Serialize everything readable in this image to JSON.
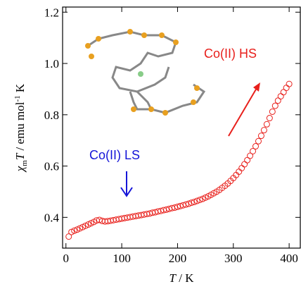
{
  "chart_data": {
    "type": "scatter",
    "x_label": [
      "T",
      " / K"
    ],
    "y_label": [
      "χ",
      "m",
      "T",
      " / emu mol",
      "-1",
      " K"
    ],
    "xlim": [
      -6,
      420
    ],
    "ylim": [
      0.28,
      1.22
    ],
    "xticks": [
      0,
      100,
      200,
      300,
      400
    ],
    "yticks": [
      0.4,
      0.6,
      0.8,
      {
        "value": 1,
        "label": "1.0"
      },
      1.2
    ],
    "annotations": [
      {
        "text": "Co(II) HS",
        "color": "#e8201c"
      },
      {
        "text": "Co(II) LS",
        "color": "#1515d8"
      }
    ],
    "series": [
      {
        "color": "#e8201c",
        "x": [
          5,
          10,
          15,
          20,
          25,
          30,
          35,
          40,
          45,
          50,
          55,
          60,
          65,
          70,
          75,
          80,
          85,
          90,
          95,
          100,
          105,
          110,
          115,
          120,
          125,
          130,
          135,
          140,
          145,
          150,
          155,
          160,
          165,
          170,
          175,
          180,
          185,
          190,
          195,
          200,
          205,
          210,
          215,
          220,
          225,
          230,
          235,
          240,
          245,
          250,
          255,
          260,
          265,
          270,
          275,
          280,
          285,
          290,
          295,
          300,
          305,
          310,
          315,
          320,
          325,
          330,
          335,
          340,
          345,
          350,
          355,
          360,
          365,
          370,
          375,
          380,
          385,
          390,
          395,
          400
        ],
        "values": [
          0.325,
          0.343,
          0.348,
          0.352,
          0.357,
          0.362,
          0.367,
          0.372,
          0.377,
          0.382,
          0.388,
          0.39,
          0.386,
          0.384,
          0.385,
          0.387,
          0.389,
          0.391,
          0.393,
          0.395,
          0.397,
          0.399,
          0.401,
          0.403,
          0.405,
          0.407,
          0.409,
          0.411,
          0.413,
          0.415,
          0.418,
          0.42,
          0.423,
          0.425,
          0.428,
          0.43,
          0.433,
          0.436,
          0.438,
          0.441,
          0.444,
          0.447,
          0.45,
          0.453,
          0.457,
          0.46,
          0.464,
          0.468,
          0.472,
          0.477,
          0.482,
          0.488,
          0.494,
          0.5,
          0.507,
          0.515,
          0.523,
          0.532,
          0.542,
          0.553,
          0.565,
          0.578,
          0.592,
          0.607,
          0.623,
          0.64,
          0.658,
          0.677,
          0.697,
          0.718,
          0.74,
          0.763,
          0.787,
          0.812,
          0.835,
          0.855,
          0.872,
          0.888,
          0.905,
          0.92
        ]
      }
    ]
  }
}
